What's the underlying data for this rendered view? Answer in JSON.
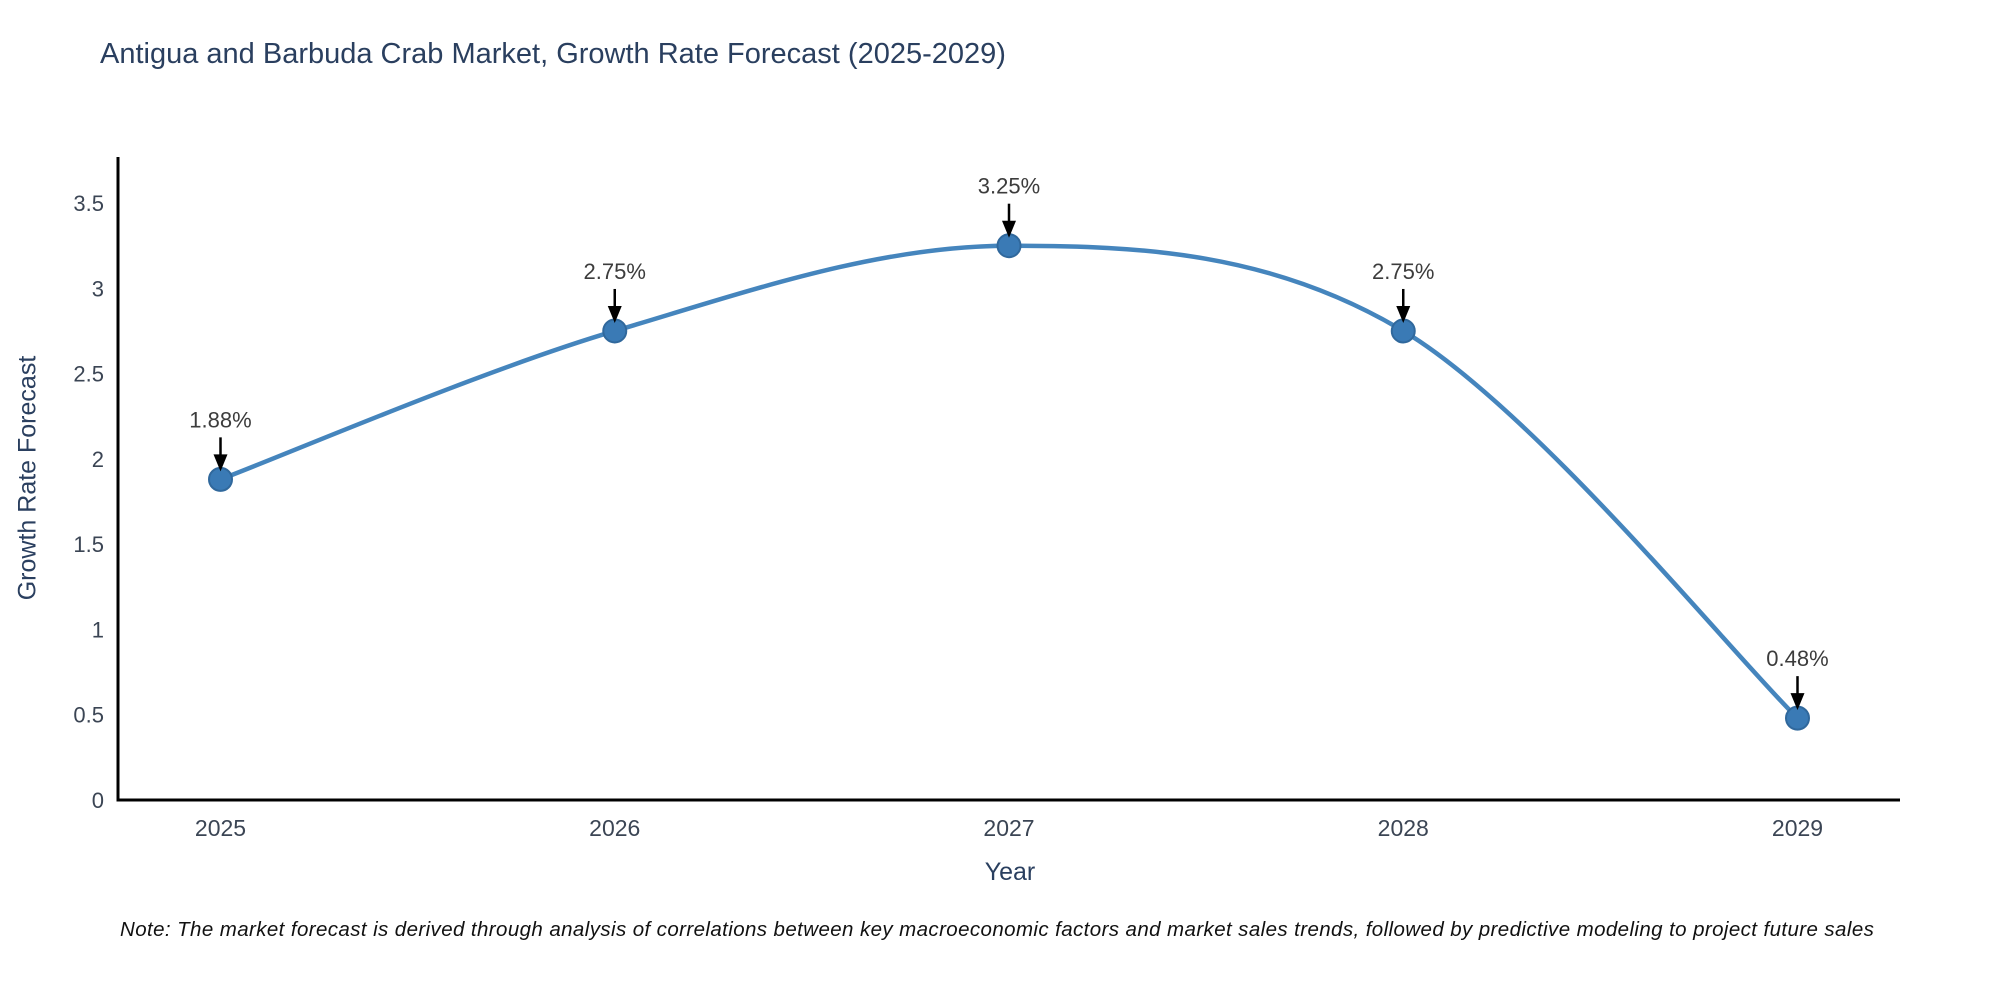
{
  "chart_data": {
    "type": "line",
    "title": "Antigua and Barbuda Crab Market, Growth Rate Forecast (2025-2029)",
    "xlabel": "Year",
    "ylabel": "Growth Rate Forecast",
    "x": [
      2025,
      2026,
      2027,
      2028,
      2029
    ],
    "values": [
      1.88,
      2.75,
      3.25,
      2.75,
      0.48
    ],
    "point_labels": [
      "1.88%",
      "2.75%",
      "3.25%",
      "2.75%",
      "0.48%"
    ],
    "xtick_labels": [
      "2025",
      "2026",
      "2027",
      "2028",
      "2029"
    ],
    "yticks": [
      0,
      0.5,
      1,
      1.5,
      2,
      2.5,
      3,
      3.5
    ],
    "ytick_labels": [
      "0",
      "0.5",
      "1",
      "1.5",
      "2",
      "2.5",
      "3",
      "3.5"
    ],
    "xlim": [
      2024.74,
      2029.26
    ],
    "ylim": [
      0,
      3.77
    ],
    "grid": false,
    "legend": "none",
    "line_shape": "spline",
    "colors": {
      "line": "#4585bd",
      "marker": "#3a7ab5",
      "marker_edge": "#30689c",
      "axis_line": "#000000",
      "title_text": "#2a3f5f",
      "axis_title_text": "#2a3f5f",
      "tick_text": "#3b4554",
      "annotation_text": "#3c3c3c",
      "arrow": "#000000",
      "note_text": "#111111",
      "background": "#ffffff"
    },
    "note": "Note: The market forecast is derived through analysis of correlations between key macroeconomic factors and market sales trends, followed by predictive modeling to project future sales"
  }
}
